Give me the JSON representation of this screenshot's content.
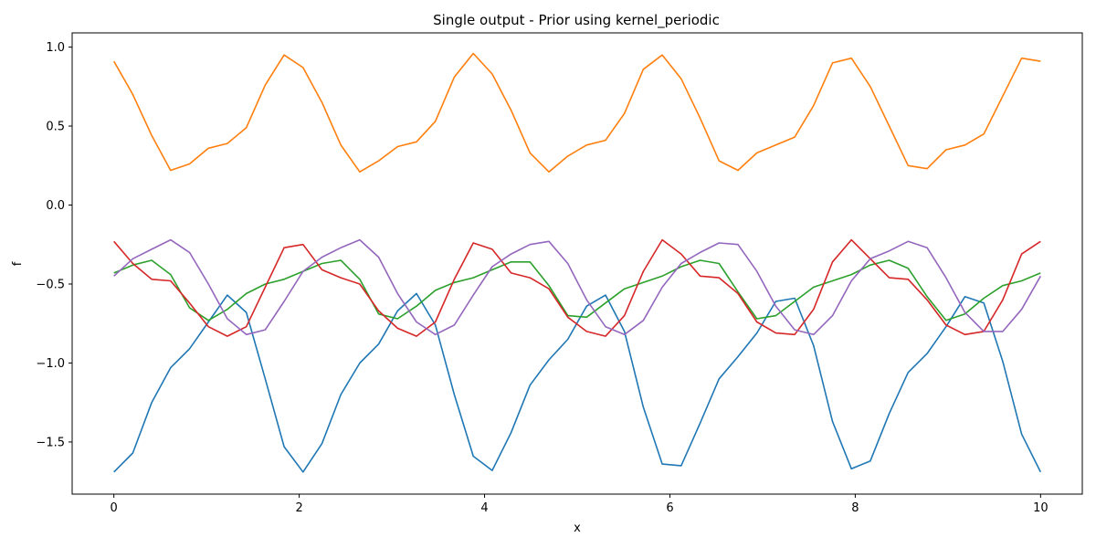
{
  "chart_data": {
    "type": "line",
    "title": "Single output - Prior using kernel_periodic",
    "xlabel": "x",
    "ylabel": "f",
    "xlim": [
      -0.45,
      10.45
    ],
    "ylim": [
      -1.83,
      1.09
    ],
    "xticks": [
      0,
      2,
      4,
      6,
      8,
      10
    ],
    "xtick_labels": [
      "0",
      "2",
      "4",
      "6",
      "8",
      "10"
    ],
    "yticks": [
      -1.5,
      -1.0,
      -0.5,
      0.0,
      0.5,
      1.0
    ],
    "ytick_labels": [
      "−1.5",
      "−1.0",
      "−0.5",
      "0.0",
      "0.5",
      "1.0"
    ],
    "grid": false,
    "legend": "none",
    "x": [
      0,
      0.204,
      0.408,
      0.612,
      0.816,
      1.02,
      1.224,
      1.429,
      1.633,
      1.837,
      2.041,
      2.245,
      2.449,
      2.653,
      2.857,
      3.061,
      3.265,
      3.469,
      3.673,
      3.878,
      4.082,
      4.286,
      4.49,
      4.694,
      4.898,
      5.102,
      5.306,
      5.51,
      5.714,
      5.918,
      6.122,
      6.327,
      6.531,
      6.735,
      6.939,
      7.143,
      7.347,
      7.551,
      7.755,
      7.959,
      8.163,
      8.367,
      8.571,
      8.776,
      8.98,
      9.184,
      9.388,
      9.592,
      9.796,
      10
    ],
    "series": [
      {
        "color": "#1f77b4",
        "values": [
          -1.69,
          -1.57,
          -1.25,
          -1.03,
          -0.91,
          -0.74,
          -0.57,
          -0.68,
          -1.1,
          -1.53,
          -1.69,
          -1.51,
          -1.2,
          -1.0,
          -0.88,
          -0.67,
          -0.56,
          -0.76,
          -1.2,
          -1.59,
          -1.68,
          -1.44,
          -1.14,
          -0.98,
          -0.85,
          -0.64,
          -0.57,
          -0.8,
          -1.28,
          -1.64,
          -1.65,
          -1.38,
          -1.1,
          -0.96,
          -0.81,
          -0.61,
          -0.59,
          -0.89,
          -1.37,
          -1.67,
          -1.62,
          -1.32,
          -1.06,
          -0.94,
          -0.77,
          -0.58,
          -0.62,
          -0.99,
          -1.45,
          -1.69
        ]
      },
      {
        "color": "#ff7f0e",
        "values": [
          0.91,
          0.7,
          0.44,
          0.22,
          0.26,
          0.36,
          0.39,
          0.49,
          0.76,
          0.95,
          0.87,
          0.65,
          0.38,
          0.21,
          0.28,
          0.37,
          0.4,
          0.53,
          0.81,
          0.96,
          0.83,
          0.6,
          0.33,
          0.21,
          0.31,
          0.38,
          0.41,
          0.58,
          0.86,
          0.95,
          0.8,
          0.55,
          0.28,
          0.22,
          0.33,
          0.38,
          0.43,
          0.63,
          0.9,
          0.93,
          0.75,
          0.5,
          0.25,
          0.23,
          0.35,
          0.38,
          0.45,
          0.69,
          0.93,
          0.91
        ]
      },
      {
        "color": "#2ca02c",
        "values": [
          -0.43,
          -0.38,
          -0.35,
          -0.44,
          -0.65,
          -0.73,
          -0.66,
          -0.56,
          -0.5,
          -0.47,
          -0.42,
          -0.37,
          -0.35,
          -0.47,
          -0.69,
          -0.72,
          -0.64,
          -0.54,
          -0.49,
          -0.46,
          -0.41,
          -0.36,
          -0.36,
          -0.51,
          -0.7,
          -0.71,
          -0.62,
          -0.53,
          -0.49,
          -0.45,
          -0.39,
          -0.35,
          -0.37,
          -0.55,
          -0.72,
          -0.7,
          -0.61,
          -0.52,
          -0.48,
          -0.44,
          -0.38,
          -0.35,
          -0.4,
          -0.58,
          -0.73,
          -0.69,
          -0.59,
          -0.51,
          -0.48,
          -0.43
        ]
      },
      {
        "color": "#d62728",
        "values": [
          -0.23,
          -0.37,
          -0.47,
          -0.48,
          -0.62,
          -0.77,
          -0.83,
          -0.77,
          -0.52,
          -0.27,
          -0.25,
          -0.41,
          -0.46,
          -0.5,
          -0.67,
          -0.78,
          -0.83,
          -0.74,
          -0.47,
          -0.24,
          -0.28,
          -0.43,
          -0.46,
          -0.53,
          -0.71,
          -0.8,
          -0.83,
          -0.7,
          -0.42,
          -0.22,
          -0.31,
          -0.45,
          -0.46,
          -0.56,
          -0.74,
          -0.81,
          -0.82,
          -0.66,
          -0.36,
          -0.22,
          -0.34,
          -0.46,
          -0.47,
          -0.6,
          -0.76,
          -0.82,
          -0.8,
          -0.6,
          -0.31,
          -0.23
        ]
      },
      {
        "color": "#9467bd",
        "values": [
          -0.45,
          -0.34,
          -0.28,
          -0.22,
          -0.3,
          -0.5,
          -0.72,
          -0.82,
          -0.79,
          -0.61,
          -0.42,
          -0.33,
          -0.27,
          -0.22,
          -0.33,
          -0.56,
          -0.74,
          -0.82,
          -0.76,
          -0.57,
          -0.39,
          -0.31,
          -0.25,
          -0.23,
          -0.37,
          -0.6,
          -0.77,
          -0.82,
          -0.73,
          -0.52,
          -0.37,
          -0.3,
          -0.24,
          -0.25,
          -0.42,
          -0.64,
          -0.79,
          -0.82,
          -0.7,
          -0.48,
          -0.34,
          -0.29,
          -0.23,
          -0.27,
          -0.46,
          -0.68,
          -0.8,
          -0.8,
          -0.66,
          -0.45
        ]
      }
    ]
  }
}
